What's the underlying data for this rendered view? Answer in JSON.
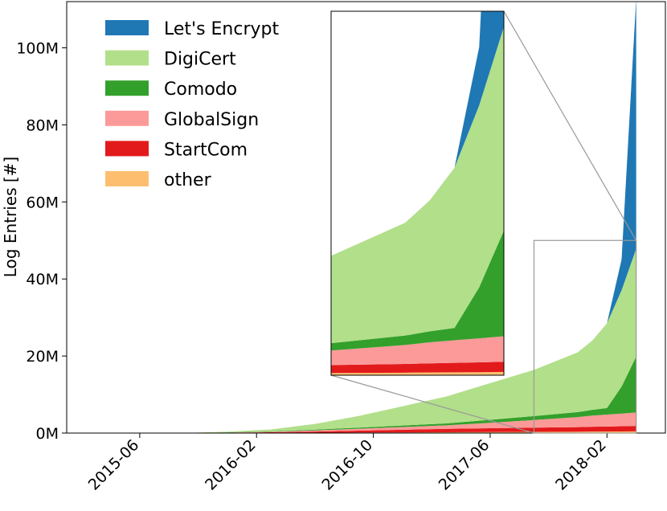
{
  "chart_data": {
    "type": "area",
    "stacked": true,
    "ylabel": "Log Entries [#]",
    "xlabel": "",
    "ylim": [
      0,
      112000000
    ],
    "xlim": [
      "2015-01",
      "2018-06"
    ],
    "x_ticks": [
      "2015-06",
      "2016-02",
      "2016-10",
      "2017-06",
      "2018-02"
    ],
    "y_ticks": [
      {
        "value": 0,
        "label": "0M"
      },
      {
        "value": 20000000,
        "label": "20M"
      },
      {
        "value": 40000000,
        "label": "40M"
      },
      {
        "value": 60000000,
        "label": "60M"
      },
      {
        "value": 80000000,
        "label": "80M"
      },
      {
        "value": 100000000,
        "label": "100M"
      }
    ],
    "legend_position": "top-left",
    "x": [
      "2015-09",
      "2015-12",
      "2016-03",
      "2016-06",
      "2016-09",
      "2016-12",
      "2017-03",
      "2017-06",
      "2017-09",
      "2017-12",
      "2018-01",
      "2018-02",
      "2018-03",
      "2018-04"
    ],
    "series": [
      {
        "name": "other",
        "color": "#fdbf6f",
        "values": [
          0,
          20000,
          50000,
          80000,
          120000,
          160000,
          200000,
          250000,
          300000,
          350000,
          380000,
          400000,
          420000,
          450000
        ]
      },
      {
        "name": "StartCom",
        "color": "#e31a1c",
        "values": [
          0,
          50000,
          150000,
          300000,
          500000,
          700000,
          900000,
          1000000,
          1100000,
          1200000,
          1250000,
          1300000,
          1350000,
          1400000
        ]
      },
      {
        "name": "GlobalSign",
        "color": "#fb9a99",
        "values": [
          0,
          50000,
          150000,
          300000,
          500000,
          700000,
          900000,
          1400000,
          2000000,
          2600000,
          2900000,
          3100000,
          3300000,
          3500000
        ]
      },
      {
        "name": "Comodo",
        "color": "#33a02c",
        "values": [
          0,
          50000,
          100000,
          200000,
          300000,
          400000,
          500000,
          800000,
          1000000,
          1300000,
          1500000,
          1700000,
          7000000,
          14500000
        ]
      },
      {
        "name": "DigiCert",
        "color": "#b2df8a",
        "values": [
          0,
          200000,
          500000,
          1500000,
          3000000,
          5000000,
          7000000,
          9500000,
          12000000,
          15500000,
          18000000,
          22000000,
          25000000,
          28000000
        ]
      },
      {
        "name": "Let's Encrypt",
        "color": "#1f78b4",
        "values": [
          0,
          0,
          0,
          0,
          0,
          0,
          0,
          0,
          0,
          0,
          0,
          0,
          8000000,
          65000000
        ]
      }
    ],
    "legend_order": [
      "Let's Encrypt",
      "DigiCert",
      "Comodo",
      "GlobalSign",
      "StartCom",
      "other"
    ],
    "inset": {
      "xlim": [
        "2017-09",
        "2018-04"
      ],
      "ylim": [
        0,
        50000000
      ]
    }
  }
}
